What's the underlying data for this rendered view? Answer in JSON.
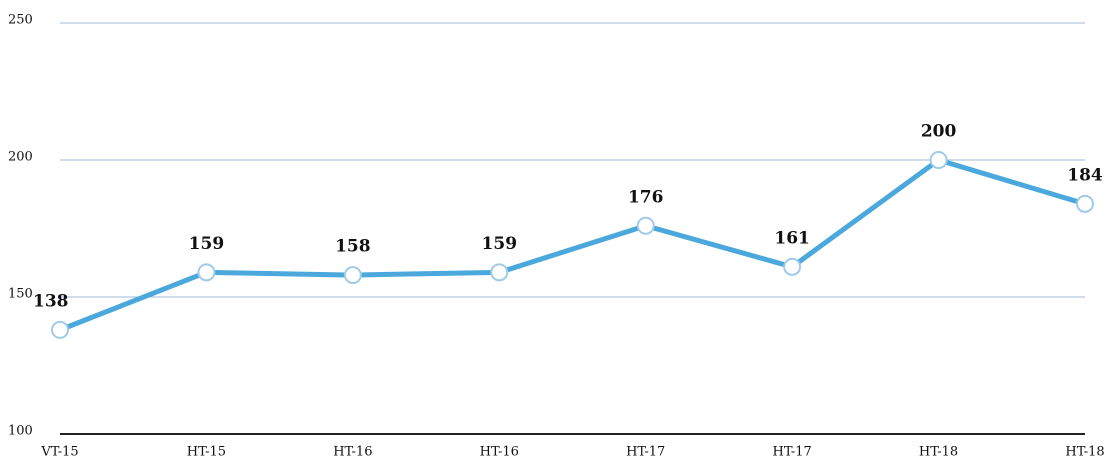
{
  "chart_data": {
    "type": "line",
    "categories": [
      "VT-15",
      "HT-15",
      "HT-16",
      "HT-16",
      "HT-17",
      "HT-17",
      "HT-18",
      "HT-18"
    ],
    "series": [
      {
        "color": "#4aa8dc",
        "values": [
          138,
          159,
          158,
          159,
          176,
          161,
          200,
          184
        ]
      }
    ],
    "ylim": [
      100,
      250
    ],
    "yticks": [
      100,
      150,
      200,
      250
    ],
    "grid": true
  }
}
